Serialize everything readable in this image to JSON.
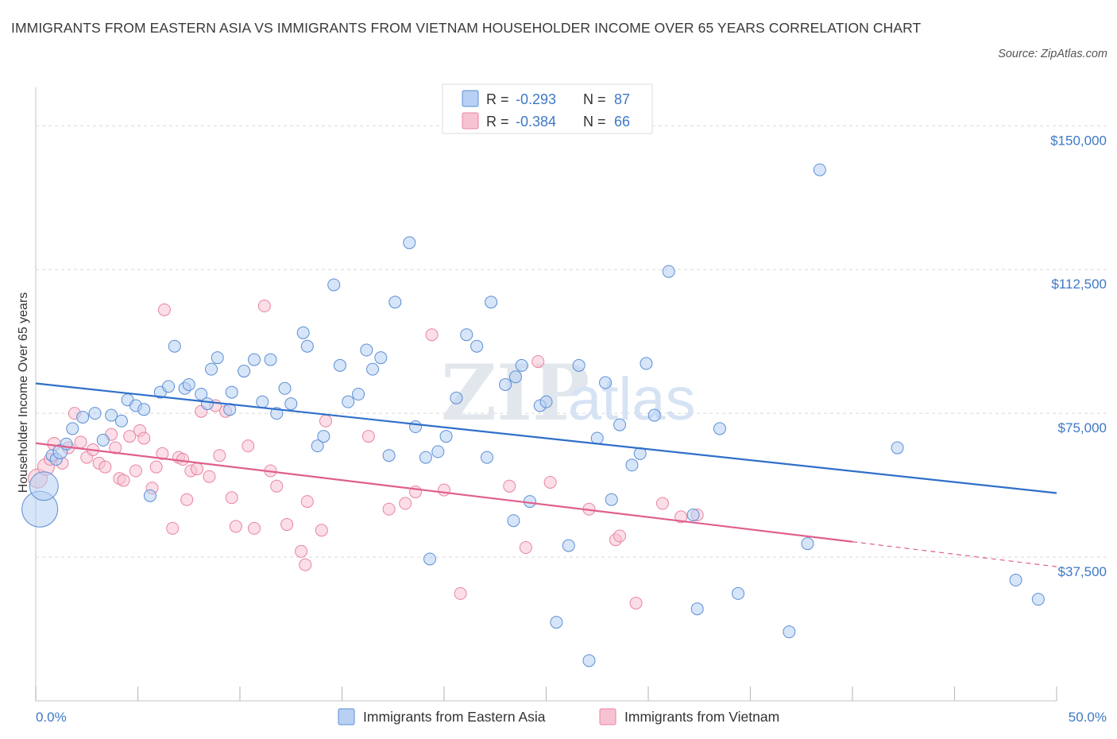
{
  "header": {
    "title": "IMMIGRANTS FROM EASTERN ASIA VS IMMIGRANTS FROM VIETNAM HOUSEHOLDER INCOME OVER 65 YEARS CORRELATION CHART",
    "source": "Source: ZipAtlas.com"
  },
  "watermark": {
    "zip": "ZIP",
    "atlas": "atlas"
  },
  "legend": {
    "blue": {
      "r_label": "R =",
      "r_value": "-0.293",
      "n_label": "N =",
      "n_value": "87"
    },
    "pink": {
      "r_label": "R =",
      "r_value": "-0.384",
      "n_label": "N =",
      "n_value": "66"
    }
  },
  "colors": {
    "blue_fill": "#b7d0f3",
    "blue_stroke": "#5b8fd6",
    "blue_line": "#2f6fca",
    "pink_fill": "#f7c3d3",
    "pink_stroke": "#e9859f",
    "pink_line": "#e05f8c",
    "grid": "#d9d9d9",
    "axis_text": "#3d78c7"
  },
  "chart_data": {
    "type": "scatter",
    "title": "IMMIGRANTS FROM EASTERN ASIA VS IMMIGRANTS FROM VIETNAM HOUSEHOLDER INCOME OVER 65 YEARS CORRELATION CHART",
    "xlabel": "",
    "ylabel": "Householder Income Over 65 years",
    "xlim": [
      0,
      50
    ],
    "ylim": [
      0,
      160000
    ],
    "x_tick_labels": [
      "0.0%",
      "50.0%"
    ],
    "y_ticks": [
      37500,
      75000,
      112500,
      150000
    ],
    "y_tick_labels": [
      "$37,500",
      "$75,000",
      "$112,500",
      "$150,000"
    ],
    "grid": true,
    "legend_position": "top-center",
    "series": [
      {
        "name": "Immigrants from Eastern Asia",
        "color": "blue",
        "r": -0.293,
        "n": 87,
        "trend": {
          "x": [
            0,
            50
          ],
          "y": [
            82800,
            54200
          ]
        },
        "points": [
          [
            0.2,
            50000,
            3
          ],
          [
            0.4,
            56000,
            2.4
          ],
          [
            0.8,
            64000,
            1
          ],
          [
            1.0,
            63000,
            1
          ],
          [
            1.2,
            65000,
            1.2
          ],
          [
            1.5,
            67000,
            1
          ],
          [
            1.8,
            71000,
            1
          ],
          [
            2.3,
            74000,
            1
          ],
          [
            2.9,
            75000,
            1
          ],
          [
            3.3,
            68000,
            1
          ],
          [
            3.7,
            74500,
            1
          ],
          [
            4.2,
            73000,
            1
          ],
          [
            4.5,
            78500,
            1
          ],
          [
            4.9,
            77000,
            1
          ],
          [
            5.3,
            76000,
            1
          ],
          [
            5.6,
            53500,
            1
          ],
          [
            6.1,
            80500,
            1
          ],
          [
            6.5,
            82000,
            1
          ],
          [
            6.8,
            92500,
            1
          ],
          [
            7.3,
            81500,
            1
          ],
          [
            7.5,
            82500,
            1
          ],
          [
            8.1,
            80000,
            1
          ],
          [
            8.4,
            77500,
            1
          ],
          [
            8.6,
            86500,
            1
          ],
          [
            8.9,
            89500,
            1
          ],
          [
            9.5,
            76000,
            1
          ],
          [
            9.6,
            80500,
            1
          ],
          [
            10.2,
            86000,
            1
          ],
          [
            10.7,
            89000,
            1
          ],
          [
            11.1,
            78000,
            1
          ],
          [
            11.5,
            89000,
            1
          ],
          [
            11.8,
            75000,
            1
          ],
          [
            12.2,
            81500,
            1
          ],
          [
            12.5,
            77500,
            1
          ],
          [
            13.1,
            96000,
            1
          ],
          [
            13.3,
            92500,
            1
          ],
          [
            13.8,
            66500,
            1
          ],
          [
            14.1,
            69000,
            1
          ],
          [
            14.6,
            108500,
            1
          ],
          [
            14.9,
            87500,
            1
          ],
          [
            15.3,
            78000,
            1
          ],
          [
            15.8,
            80000,
            1
          ],
          [
            16.2,
            91500,
            1
          ],
          [
            16.5,
            86500,
            1
          ],
          [
            16.9,
            89500,
            1
          ],
          [
            17.3,
            64000,
            1
          ],
          [
            17.6,
            104000,
            1
          ],
          [
            18.3,
            119500,
            1
          ],
          [
            18.6,
            71500,
            1
          ],
          [
            19.1,
            63500,
            1
          ],
          [
            19.3,
            37000,
            1
          ],
          [
            19.7,
            65000,
            1
          ],
          [
            20.1,
            69000,
            1
          ],
          [
            20.6,
            79000,
            1
          ],
          [
            21.1,
            95500,
            1
          ],
          [
            21.6,
            92500,
            1
          ],
          [
            22.1,
            63500,
            1
          ],
          [
            22.3,
            104000,
            1
          ],
          [
            23.0,
            82500,
            1
          ],
          [
            23.4,
            47000,
            1
          ],
          [
            23.5,
            84500,
            1
          ],
          [
            23.8,
            87500,
            1
          ],
          [
            24.2,
            52000,
            1
          ],
          [
            24.7,
            77000,
            1
          ],
          [
            25.0,
            78000,
            1
          ],
          [
            25.5,
            20500,
            1
          ],
          [
            26.1,
            40500,
            1
          ],
          [
            26.6,
            87500,
            1
          ],
          [
            27.1,
            10500,
            1
          ],
          [
            27.5,
            68500,
            1
          ],
          [
            27.9,
            83000,
            1
          ],
          [
            28.2,
            52500,
            1
          ],
          [
            28.6,
            72000,
            1
          ],
          [
            29.2,
            61500,
            1
          ],
          [
            29.6,
            64500,
            1
          ],
          [
            29.9,
            88000,
            1
          ],
          [
            30.3,
            74500,
            1
          ],
          [
            31.0,
            112000,
            1
          ],
          [
            32.2,
            48500,
            1
          ],
          [
            32.4,
            24000,
            1
          ],
          [
            33.5,
            71000,
            1
          ],
          [
            34.4,
            28000,
            1
          ],
          [
            36.9,
            18000,
            1
          ],
          [
            37.8,
            41000,
            1
          ],
          [
            38.4,
            138500,
            1
          ],
          [
            42.2,
            66000,
            1
          ],
          [
            48.0,
            31500,
            1
          ],
          [
            49.1,
            26500,
            1
          ]
        ]
      },
      {
        "name": "Immigrants from Vietnam",
        "color": "pink",
        "r": -0.384,
        "n": 66,
        "trend": {
          "x": [
            0,
            40
          ],
          "y": [
            67200,
            41500
          ]
        },
        "trend_extension": {
          "x": [
            40,
            50
          ],
          "y": [
            41500,
            35000
          ]
        },
        "points": [
          [
            0.1,
            58000,
            1.6
          ],
          [
            0.5,
            61000,
            1.4
          ],
          [
            0.7,
            63000,
            1
          ],
          [
            0.9,
            67000,
            1.1
          ],
          [
            1.3,
            62000,
            1
          ],
          [
            1.6,
            66000,
            1
          ],
          [
            1.9,
            75000,
            1
          ],
          [
            2.2,
            67500,
            1
          ],
          [
            2.5,
            63500,
            1
          ],
          [
            2.8,
            65500,
            1
          ],
          [
            3.1,
            62000,
            1
          ],
          [
            3.4,
            61000,
            1
          ],
          [
            3.7,
            69500,
            1
          ],
          [
            3.9,
            66000,
            1
          ],
          [
            4.1,
            58000,
            1
          ],
          [
            4.3,
            57500,
            1
          ],
          [
            4.6,
            69000,
            1
          ],
          [
            4.9,
            60000,
            1
          ],
          [
            5.1,
            70500,
            1
          ],
          [
            5.3,
            68500,
            1
          ],
          [
            5.7,
            55500,
            1
          ],
          [
            5.9,
            61000,
            1
          ],
          [
            6.2,
            64500,
            1
          ],
          [
            6.3,
            102000,
            1
          ],
          [
            6.7,
            45000,
            1
          ],
          [
            7.0,
            63500,
            1
          ],
          [
            7.2,
            63000,
            1
          ],
          [
            7.4,
            52500,
            1
          ],
          [
            7.6,
            60000,
            1
          ],
          [
            7.9,
            60500,
            1
          ],
          [
            8.1,
            75500,
            1
          ],
          [
            8.5,
            58500,
            1
          ],
          [
            8.8,
            77000,
            1
          ],
          [
            9.0,
            64000,
            1
          ],
          [
            9.3,
            75500,
            1
          ],
          [
            9.6,
            53000,
            1
          ],
          [
            9.8,
            45500,
            1
          ],
          [
            10.4,
            66500,
            1
          ],
          [
            10.7,
            45000,
            1
          ],
          [
            11.2,
            103000,
            1
          ],
          [
            11.5,
            60000,
            1
          ],
          [
            11.8,
            56000,
            1
          ],
          [
            12.3,
            46000,
            1
          ],
          [
            13.0,
            39000,
            1
          ],
          [
            13.2,
            35500,
            1
          ],
          [
            13.3,
            52000,
            1
          ],
          [
            14.0,
            44500,
            1
          ],
          [
            14.2,
            73000,
            1
          ],
          [
            16.3,
            69000,
            1
          ],
          [
            17.3,
            50000,
            1
          ],
          [
            18.1,
            51500,
            1
          ],
          [
            18.6,
            54500,
            1
          ],
          [
            19.4,
            95500,
            1
          ],
          [
            20.0,
            55000,
            1
          ],
          [
            20.8,
            28000,
            1
          ],
          [
            23.2,
            56000,
            1
          ],
          [
            24.0,
            40000,
            1
          ],
          [
            24.6,
            88500,
            1
          ],
          [
            25.2,
            57000,
            1
          ],
          [
            27.1,
            50000,
            1
          ],
          [
            28.4,
            42000,
            1
          ],
          [
            28.6,
            43000,
            1
          ],
          [
            29.4,
            25500,
            1
          ],
          [
            30.7,
            51500,
            1
          ],
          [
            31.6,
            48000,
            1
          ],
          [
            32.4,
            48500,
            1
          ]
        ]
      }
    ]
  },
  "bottom_legend": {
    "blue_label": "Immigrants from Eastern Asia",
    "pink_label": "Immigrants from Vietnam"
  }
}
